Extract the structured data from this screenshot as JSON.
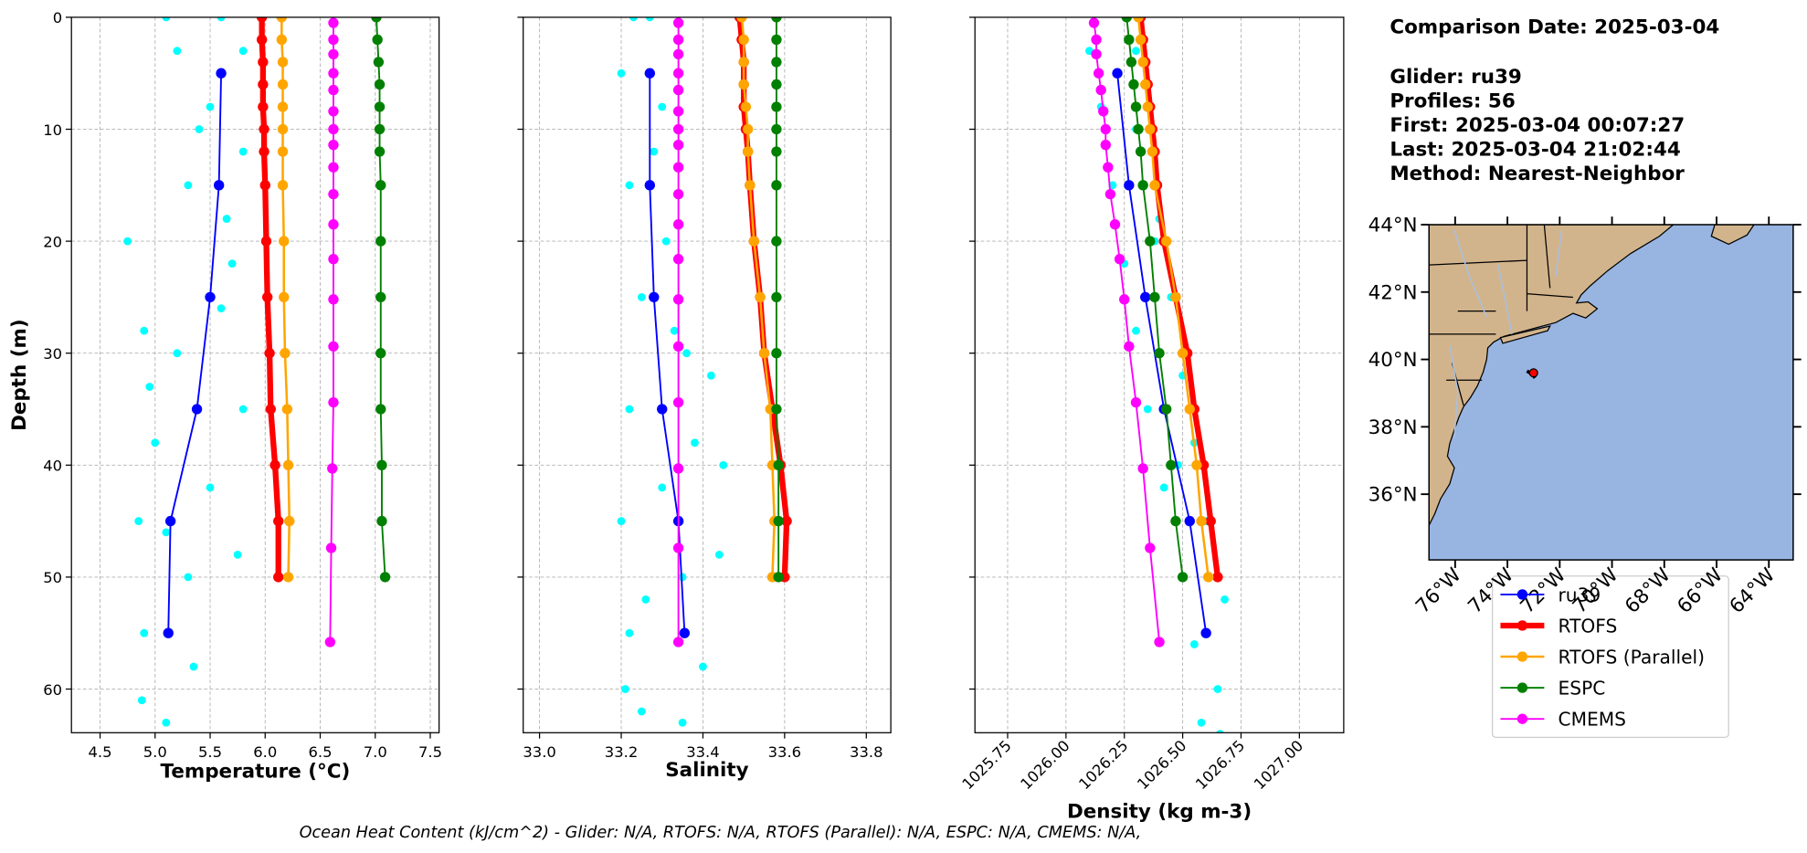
{
  "chart_data": [
    {
      "type": "line",
      "xlabel": "Temperature (°C)",
      "ylabel": "Depth (m)",
      "show_ytick_labels": true,
      "xlim": [
        4.24,
        7.58
      ],
      "xticks": [
        {
          "value": 4.5,
          "label": "4.5"
        },
        {
          "value": 5,
          "label": "5.0"
        },
        {
          "value": 5.5,
          "label": "5.5"
        },
        {
          "value": 6,
          "label": "6.0"
        },
        {
          "value": 6.5,
          "label": "6.5"
        },
        {
          "value": 7,
          "label": "7.0"
        },
        {
          "value": 7.5,
          "label": "7.5"
        }
      ],
      "ylim": [
        63.9,
        0
      ],
      "yticks": [
        0,
        10,
        20,
        30,
        40,
        50,
        60
      ],
      "grid": true,
      "scatter": {
        "color": "#00ffff",
        "x": [
          5.1,
          5.6,
          5.2,
          5.8,
          5.5,
          5.8,
          5.3,
          4.75,
          5.7,
          4.9,
          5.2,
          5.8,
          5.0,
          5.5,
          4.85,
          5.75,
          5.3,
          4.9,
          5.35,
          4.88,
          5.1,
          5.4,
          5.6,
          5.1,
          4.95,
          5.65
        ],
        "y": [
          0,
          0,
          3,
          3,
          8,
          12,
          15,
          20,
          22,
          28,
          30,
          35,
          38,
          42,
          45,
          48,
          50,
          55,
          58,
          61,
          63,
          10,
          26,
          46,
          33,
          18
        ]
      },
      "series": [
        {
          "x": [
            5.6,
            5.58,
            5.5,
            5.38,
            5.14,
            5.12
          ],
          "y": [
            5,
            15,
            25,
            35,
            45,
            55
          ]
        },
        {
          "x": [
            5.97,
            5.97,
            5.98,
            5.98,
            5.98,
            5.99,
            5.99,
            6.0,
            6.01,
            6.02,
            6.04,
            6.05,
            6.09,
            6.12,
            6.12
          ],
          "y": [
            0,
            2,
            4,
            6,
            8,
            10,
            12,
            15,
            20,
            25,
            30,
            35,
            40,
            45,
            50
          ]
        },
        {
          "x": [
            6.15,
            6.15,
            6.16,
            6.16,
            6.16,
            6.16,
            6.16,
            6.16,
            6.17,
            6.17,
            6.18,
            6.2,
            6.21,
            6.22,
            6.21
          ],
          "y": [
            0,
            2,
            4,
            6,
            8,
            10,
            12,
            15,
            20,
            25,
            30,
            35,
            40,
            45,
            50
          ]
        },
        {
          "x": [
            7.01,
            7.02,
            7.03,
            7.04,
            7.04,
            7.04,
            7.04,
            7.05,
            7.05,
            7.05,
            7.05,
            7.05,
            7.06,
            7.06,
            7.09
          ],
          "y": [
            0,
            2,
            4,
            6,
            8,
            10,
            12,
            15,
            20,
            25,
            30,
            35,
            40,
            45,
            50
          ]
        },
        {
          "x": [
            6.62,
            6.62,
            6.62,
            6.62,
            6.62,
            6.62,
            6.62,
            6.62,
            6.62,
            6.62,
            6.62,
            6.62,
            6.62,
            6.62,
            6.62,
            6.61,
            6.6,
            6.59
          ],
          "y": [
            0.5,
            2,
            3.3,
            5,
            6.5,
            8.4,
            10,
            11.4,
            13.4,
            15.8,
            18.5,
            21.6,
            25.2,
            29.4,
            34.4,
            40.3,
            47.4,
            55.8
          ]
        }
      ]
    },
    {
      "type": "line",
      "xlabel": "Salinity",
      "show_ytick_labels": false,
      "xlim": [
        32.96,
        33.86
      ],
      "xticks": [
        {
          "value": 33,
          "label": "33.0"
        },
        33.2,
        33.4,
        33.6,
        33.8
      ],
      "ylim": [
        63.9,
        0
      ],
      "yticks": [
        0,
        10,
        20,
        30,
        40,
        50,
        60
      ],
      "grid": true,
      "scatter": {
        "color": "#00ffff",
        "x": [
          33.23,
          33.27,
          33.2,
          33.3,
          33.22,
          33.31,
          33.25,
          33.33,
          33.42,
          33.22,
          33.45,
          33.3,
          33.2,
          33.44,
          33.35,
          33.22,
          33.4,
          33.25,
          33.35,
          33.28,
          33.38,
          33.26,
          33.36,
          33.21
        ],
        "y": [
          0,
          0,
          5,
          8,
          15,
          20,
          25,
          28,
          32,
          35,
          40,
          42,
          45,
          48,
          50,
          55,
          58,
          62,
          63,
          12,
          38,
          52,
          30,
          60
        ]
      },
      "series": [
        {
          "x": [
            33.27,
            33.27,
            33.28,
            33.3,
            33.34,
            33.355
          ],
          "y": [
            5,
            15,
            25,
            35,
            45,
            55
          ]
        },
        {
          "x": [
            33.49,
            33.495,
            33.5,
            33.5,
            33.5,
            33.505,
            33.51,
            33.515,
            33.525,
            33.54,
            33.55,
            33.57,
            33.59,
            33.605,
            33.6
          ],
          "y": [
            0,
            2,
            4,
            6,
            8,
            10,
            12,
            15,
            20,
            25,
            30,
            35,
            40,
            45,
            50
          ]
        },
        {
          "x": [
            33.495,
            33.5,
            33.5,
            33.5,
            33.505,
            33.51,
            33.51,
            33.515,
            33.525,
            33.54,
            33.55,
            33.565,
            33.57,
            33.575,
            33.57
          ],
          "y": [
            0,
            2,
            4,
            6,
            8,
            10,
            12,
            15,
            20,
            25,
            30,
            35,
            40,
            45,
            50
          ]
        },
        {
          "x": [
            33.58,
            33.58,
            33.58,
            33.58,
            33.58,
            33.58,
            33.58,
            33.58,
            33.58,
            33.58,
            33.58,
            33.58,
            33.585,
            33.585,
            33.585
          ],
          "y": [
            0,
            2,
            4,
            6,
            8,
            10,
            12,
            15,
            20,
            25,
            30,
            35,
            40,
            45,
            50
          ]
        },
        {
          "x": [
            33.34,
            33.34,
            33.34,
            33.34,
            33.34,
            33.34,
            33.34,
            33.34,
            33.34,
            33.34,
            33.34,
            33.34,
            33.34,
            33.34,
            33.34,
            33.34,
            33.34,
            33.34
          ],
          "y": [
            0.5,
            2,
            3.3,
            5,
            6.5,
            8.4,
            10,
            11.4,
            13.4,
            15.8,
            18.5,
            21.6,
            25.2,
            29.4,
            34.4,
            40.3,
            47.4,
            55.8
          ]
        }
      ]
    },
    {
      "type": "line",
      "xlabel": "Density (kg m-3)",
      "show_ytick_labels": false,
      "xlim": [
        1025.61,
        1027.19
      ],
      "xticks": [
        1025.75,
        {
          "value": 1026,
          "label": "1026.00"
        },
        1026.25,
        {
          "value": 1026.5,
          "label": "1026.50"
        },
        1026.75,
        {
          "value": 1027,
          "label": "1027.00"
        }
      ],
      "ylim": [
        63.9,
        0
      ],
      "yticks": [
        0,
        10,
        20,
        30,
        40,
        50,
        60
      ],
      "grid": true,
      "scatter": {
        "color": "#00ffff",
        "x": [
          1026.1,
          1026.3,
          1026.15,
          1026.3,
          1026.2,
          1026.4,
          1026.25,
          1026.45,
          1026.3,
          1026.5,
          1026.35,
          1026.55,
          1026.42,
          1026.6,
          1026.5,
          1026.68,
          1026.55,
          1026.65,
          1026.58,
          1026.66,
          1026.22,
          1026.38,
          1026.48
        ],
        "y": [
          3,
          3,
          8,
          10,
          15,
          18,
          22,
          25,
          28,
          32,
          35,
          38,
          42,
          45,
          50,
          52,
          56,
          60,
          63,
          64,
          5,
          20,
          40
        ]
      },
      "series": [
        {
          "x": [
            1026.22,
            1026.27,
            1026.34,
            1026.42,
            1026.53,
            1026.6
          ],
          "y": [
            5,
            15,
            25,
            35,
            45,
            55
          ]
        },
        {
          "x": [
            1026.32,
            1026.33,
            1026.34,
            1026.35,
            1026.36,
            1026.37,
            1026.38,
            1026.39,
            1026.42,
            1026.47,
            1026.52,
            1026.55,
            1026.59,
            1026.62,
            1026.65
          ],
          "y": [
            0,
            2,
            4,
            6,
            8,
            10,
            12,
            15,
            20,
            25,
            30,
            35,
            40,
            45,
            50
          ]
        },
        {
          "x": [
            1026.31,
            1026.32,
            1026.33,
            1026.34,
            1026.35,
            1026.36,
            1026.37,
            1026.38,
            1026.43,
            1026.47,
            1026.5,
            1026.53,
            1026.56,
            1026.58,
            1026.61
          ],
          "y": [
            0,
            2,
            4,
            6,
            8,
            10,
            12,
            15,
            20,
            25,
            30,
            35,
            40,
            45,
            50
          ]
        },
        {
          "x": [
            1026.26,
            1026.27,
            1026.28,
            1026.29,
            1026.3,
            1026.31,
            1026.32,
            1026.33,
            1026.36,
            1026.38,
            1026.4,
            1026.43,
            1026.45,
            1026.47,
            1026.5
          ],
          "y": [
            0,
            2,
            4,
            6,
            8,
            10,
            12,
            15,
            20,
            25,
            30,
            35,
            40,
            45,
            50
          ]
        },
        {
          "x": [
            1026.12,
            1026.13,
            1026.13,
            1026.14,
            1026.15,
            1026.16,
            1026.17,
            1026.17,
            1026.18,
            1026.19,
            1026.21,
            1026.23,
            1026.25,
            1026.27,
            1026.3,
            1026.33,
            1026.36,
            1026.4
          ],
          "y": [
            0.5,
            2,
            3.3,
            5,
            6.5,
            8.4,
            10,
            11.4,
            13.4,
            15.8,
            18.5,
            21.6,
            25.2,
            29.4,
            34.4,
            40.3,
            47.4,
            55.8
          ]
        }
      ]
    }
  ],
  "legend": {
    "entries": [
      {
        "name": "ru39",
        "color": "#0000ff",
        "linewidth": 1.5
      },
      {
        "name": "RTOFS",
        "color": "#ff0000",
        "linewidth": 5
      },
      {
        "name": "RTOFS (Parallel)",
        "color": "#ffa500",
        "linewidth": 2
      },
      {
        "name": "ESPC",
        "color": "#008000",
        "linewidth": 1.5
      },
      {
        "name": "CMEMS",
        "color": "#ff00ff",
        "linewidth": 1.5
      }
    ]
  },
  "info": [
    "Comparison Date: 2025-03-04",
    "Glider: ru39",
    "Profiles: 56",
    "First: 2025-03-04 00:07:27",
    "Last: 2025-03-04 21:02:44",
    "Method: Nearest-Neighbor"
  ],
  "map": {
    "xlim": [
      -77,
      -63.07
    ],
    "ylim": [
      34.05,
      44
    ],
    "xticks": [
      {
        "value": -76,
        "label": "76°W"
      },
      {
        "value": -74,
        "label": "74°W"
      },
      {
        "value": -72,
        "label": "72°W"
      },
      {
        "value": -70,
        "label": "70°W"
      },
      {
        "value": -68,
        "label": "68°W"
      },
      {
        "value": -66,
        "label": "66°W"
      },
      {
        "value": -64,
        "label": "64°W"
      }
    ],
    "yticks": [
      {
        "value": 36,
        "label": "36°N"
      },
      {
        "value": 38,
        "label": "38°N"
      },
      {
        "value": 40,
        "label": "40°N"
      },
      {
        "value": 42,
        "label": "42°N"
      },
      {
        "value": 44,
        "label": "44°N"
      }
    ],
    "glider": {
      "lon": -73.0,
      "lat": 39.6,
      "color": "#ff0000"
    }
  },
  "footer": "Ocean Heat Content (kJ/cm^2) - Glider: N/A,  RTOFS: N/A,  RTOFS (Parallel): N/A,  ESPC: N/A,  CMEMS: N/A,"
}
